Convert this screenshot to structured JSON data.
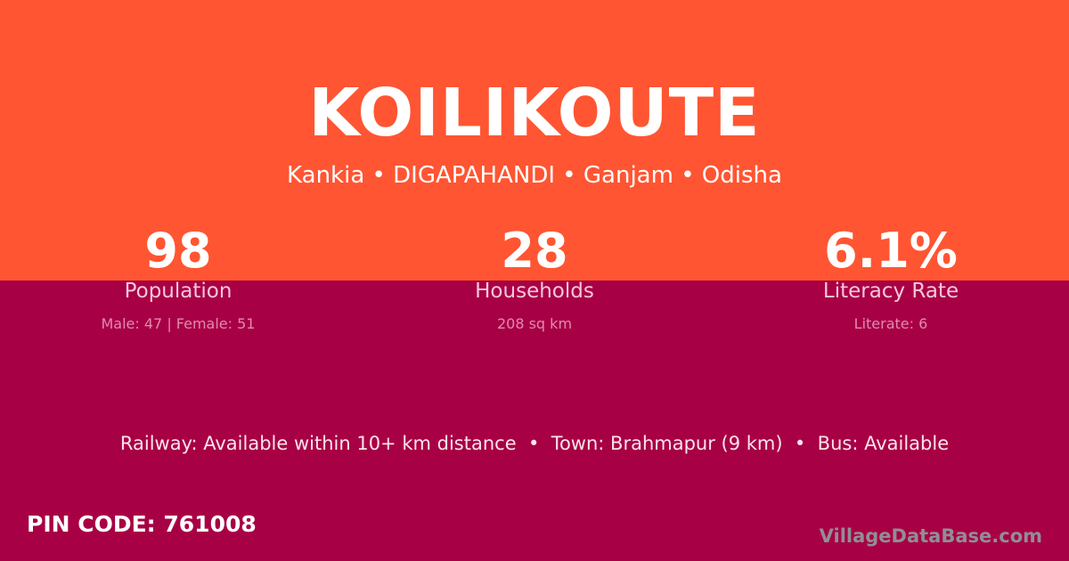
{
  "colors": {
    "top_bg": "#ff5532",
    "bottom_bg": "#a80044"
  },
  "village": "KOILIKOUTE",
  "location": "Kankia • DIGAPAHANDI • Ganjam • Odisha",
  "stats": [
    {
      "value": "98",
      "label": "Population",
      "detail": "Male: 47 | Female: 51"
    },
    {
      "value": "28",
      "label": "Households",
      "detail": "208 sq km"
    },
    {
      "value": "6.1%",
      "label": "Literacy Rate",
      "detail": "Literate: 6"
    }
  ],
  "connectivity": "Railway: Available within 10+ km distance  •  Town: Brahmapur (9 km)  •  Bus: Available",
  "pin_code": "PIN CODE: 761008",
  "brand": "VillageDataBase.com"
}
